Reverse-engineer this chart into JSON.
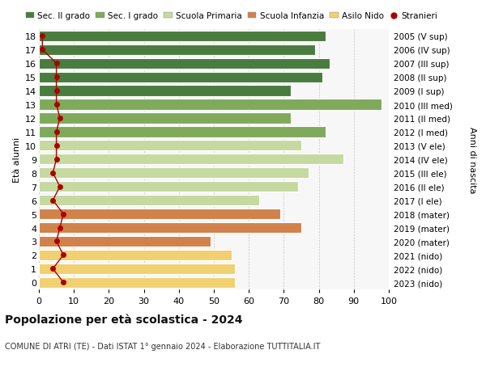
{
  "ages": [
    18,
    17,
    16,
    15,
    14,
    13,
    12,
    11,
    10,
    9,
    8,
    7,
    6,
    5,
    4,
    3,
    2,
    1,
    0
  ],
  "bar_values": [
    82,
    79,
    83,
    81,
    72,
    98,
    72,
    82,
    75,
    87,
    77,
    74,
    63,
    69,
    75,
    49,
    55,
    56,
    56
  ],
  "bar_colors": [
    "#4a7c3f",
    "#4a7c3f",
    "#4a7c3f",
    "#4a7c3f",
    "#4a7c3f",
    "#7faa5c",
    "#7faa5c",
    "#7faa5c",
    "#c5d9a0",
    "#c5d9a0",
    "#c5d9a0",
    "#c5d9a0",
    "#c5d9a0",
    "#d0824a",
    "#d0824a",
    "#d0824a",
    "#f0d070",
    "#f0d070",
    "#f0d070"
  ],
  "stranieri_values": [
    1,
    1,
    5,
    5,
    5,
    5,
    6,
    5,
    5,
    5,
    4,
    6,
    4,
    7,
    6,
    5,
    7,
    4,
    7
  ],
  "right_labels": [
    "2005 (V sup)",
    "2006 (IV sup)",
    "2007 (III sup)",
    "2008 (II sup)",
    "2009 (I sup)",
    "2010 (III med)",
    "2011 (II med)",
    "2012 (I med)",
    "2013 (V ele)",
    "2014 (IV ele)",
    "2015 (III ele)",
    "2016 (II ele)",
    "2017 (I ele)",
    "2018 (mater)",
    "2019 (mater)",
    "2020 (mater)",
    "2021 (nido)",
    "2022 (nido)",
    "2023 (nido)"
  ],
  "legend_labels": [
    "Sec. II grado",
    "Sec. I grado",
    "Scuola Primaria",
    "Scuola Infanzia",
    "Asilo Nido",
    "Stranieri"
  ],
  "legend_colors": [
    "#4a7c3f",
    "#7faa5c",
    "#c5d9a0",
    "#d0824a",
    "#f0d070",
    "#aa0000"
  ],
  "title": "Popolazione per età scolastica - 2024",
  "subtitle": "COMUNE DI ATRI (TE) - Dati ISTAT 1° gennaio 2024 - Elaborazione TUTTITALIA.IT",
  "ylabel_left": "Età alunni",
  "ylabel_right": "Anni di nascita",
  "xlim": [
    0,
    100
  ],
  "xticks": [
    0,
    10,
    20,
    30,
    40,
    50,
    60,
    70,
    80,
    90,
    100
  ],
  "background_color": "#ffffff",
  "plot_bg_color": "#f7f7f7"
}
